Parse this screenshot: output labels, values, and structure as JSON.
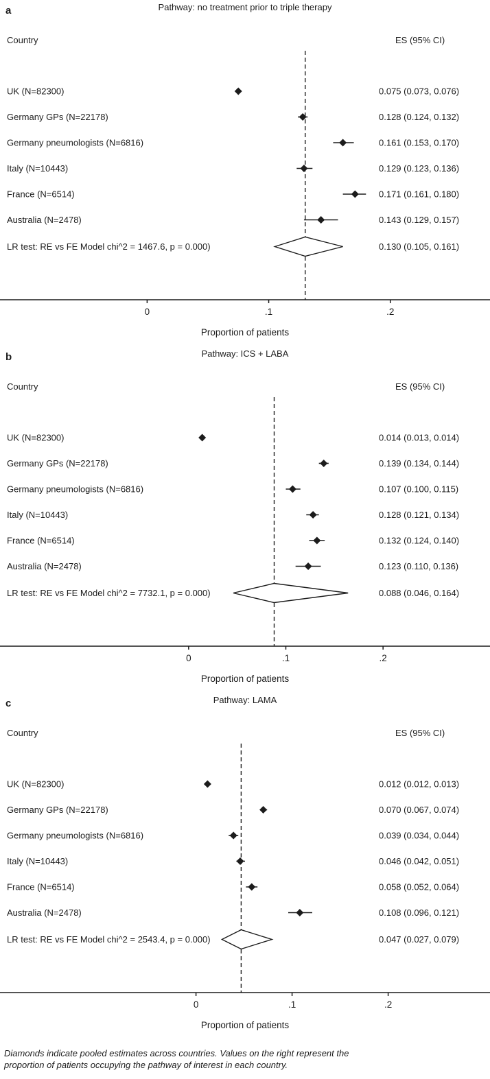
{
  "figure": {
    "caption_line1": "Diamonds indicate pooled estimates across countries. Values on the right represent the",
    "caption_line2": "proportion of patients occupying the pathway of interest in each country.",
    "ink_color": "#1c1c1c",
    "background": "#ffffff"
  },
  "chart_data": [
    {
      "type": "forest",
      "panel_label": "a",
      "title": "Pathway: no treatment prior to triple therapy",
      "columns": {
        "country": "Country",
        "es": "ES (95% CI)"
      },
      "xlabel": "Proportion of patients",
      "xlim": [
        -0.121,
        0.282
      ],
      "ticks": [
        0,
        0.1,
        0.2
      ],
      "tick_labels": [
        "0",
        ".1",
        ".2"
      ],
      "grid": false,
      "studies": [
        {
          "label": "UK (N=82300)",
          "es": 0.075,
          "ci": [
            0.073,
            0.076
          ],
          "es_text": "0.075 (0.073, 0.076)"
        },
        {
          "label": "Germany GPs (N=22178)",
          "es": 0.128,
          "ci": [
            0.124,
            0.132
          ],
          "es_text": "0.128 (0.124, 0.132)"
        },
        {
          "label": "Germany pneumologists (N=6816)",
          "es": 0.161,
          "ci": [
            0.153,
            0.17
          ],
          "es_text": "0.161 (0.153, 0.170)"
        },
        {
          "label": "Italy (N=10443)",
          "es": 0.129,
          "ci": [
            0.123,
            0.136
          ],
          "es_text": "0.129 (0.123, 0.136)"
        },
        {
          "label": "France (N=6514)",
          "es": 0.171,
          "ci": [
            0.161,
            0.18
          ],
          "es_text": "0.171 (0.161, 0.180)"
        },
        {
          "label": "Australia (N=2478)",
          "es": 0.143,
          "ci": [
            0.129,
            0.157
          ],
          "es_text": "0.143 (0.129, 0.157)"
        }
      ],
      "pooled": {
        "label": "LR test: RE vs FE Model chi^2 = 1467.6, p = 0.000)",
        "es": 0.13,
        "ci": [
          0.105,
          0.161
        ],
        "es_text": "0.130 (0.105, 0.161)"
      }
    },
    {
      "type": "forest",
      "panel_label": "b",
      "title": "Pathway: ICS + LABA",
      "columns": {
        "country": "Country",
        "es": "ES (95% CI)"
      },
      "xlabel": "Proportion of patients",
      "xlim": [
        -0.194,
        0.31
      ],
      "ticks": [
        0,
        0.1,
        0.2
      ],
      "tick_labels": [
        "0",
        ".1",
        ".2"
      ],
      "grid": false,
      "studies": [
        {
          "label": "UK (N=82300)",
          "es": 0.014,
          "ci": [
            0.013,
            0.014
          ],
          "es_text": "0.014 (0.013, 0.014)"
        },
        {
          "label": "Germany GPs (N=22178)",
          "es": 0.139,
          "ci": [
            0.134,
            0.144
          ],
          "es_text": "0.139 (0.134, 0.144)"
        },
        {
          "label": "Germany pneumologists (N=6816)",
          "es": 0.107,
          "ci": [
            0.1,
            0.115
          ],
          "es_text": "0.107 (0.100, 0.115)"
        },
        {
          "label": "Italy (N=10443)",
          "es": 0.128,
          "ci": [
            0.121,
            0.134
          ],
          "es_text": "0.128 (0.121, 0.134)"
        },
        {
          "label": "France (N=6514)",
          "es": 0.132,
          "ci": [
            0.124,
            0.14
          ],
          "es_text": "0.132 (0.124, 0.140)"
        },
        {
          "label": "Australia (N=2478)",
          "es": 0.123,
          "ci": [
            0.11,
            0.136
          ],
          "es_text": "0.123 (0.110, 0.136)"
        }
      ],
      "pooled": {
        "label": "LR test: RE vs FE Model chi^2 = 7732.1, p = 0.000)",
        "es": 0.088,
        "ci": [
          0.046,
          0.164
        ],
        "es_text": "0.088 (0.046, 0.164)"
      }
    },
    {
      "type": "forest",
      "panel_label": "c",
      "title": "Pathway: LAMA",
      "columns": {
        "country": "Country",
        "es": "ES (95% CI)"
      },
      "xlabel": "Proportion of patients",
      "xlim": [
        -0.204,
        0.306
      ],
      "ticks": [
        0,
        0.1,
        0.2
      ],
      "tick_labels": [
        "0",
        ".1",
        ".2"
      ],
      "grid": false,
      "studies": [
        {
          "label": "UK (N=82300)",
          "es": 0.012,
          "ci": [
            0.012,
            0.013
          ],
          "es_text": "0.012 (0.012, 0.013)"
        },
        {
          "label": "Germany GPs (N=22178)",
          "es": 0.07,
          "ci": [
            0.067,
            0.074
          ],
          "es_text": "0.070 (0.067, 0.074)"
        },
        {
          "label": "Germany pneumologists (N=6816)",
          "es": 0.039,
          "ci": [
            0.034,
            0.044
          ],
          "es_text": "0.039 (0.034, 0.044)"
        },
        {
          "label": "Italy (N=10443)",
          "es": 0.046,
          "ci": [
            0.042,
            0.051
          ],
          "es_text": "0.046 (0.042, 0.051)"
        },
        {
          "label": "France (N=6514)",
          "es": 0.058,
          "ci": [
            0.052,
            0.064
          ],
          "es_text": "0.058 (0.052, 0.064)"
        },
        {
          "label": "Australia (N=2478)",
          "es": 0.108,
          "ci": [
            0.096,
            0.121
          ],
          "es_text": "0.108 (0.096, 0.121)"
        }
      ],
      "pooled": {
        "label": "LR test: RE vs FE Model chi^2 = 2543.4, p = 0.000)",
        "es": 0.047,
        "ci": [
          0.027,
          0.079
        ],
        "es_text": "0.047 (0.027, 0.079)"
      }
    }
  ]
}
